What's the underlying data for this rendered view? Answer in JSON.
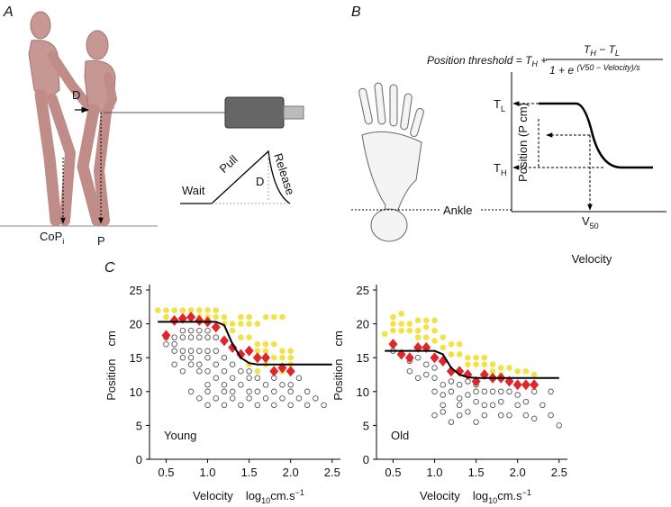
{
  "panel_a": {
    "label": "A",
    "pull_label": "D",
    "cop": "CoP",
    "cop_sub": "i",
    "p_label": "P",
    "wait": "Wait",
    "pull": "Pull",
    "d": "D",
    "release": "Release"
  },
  "panel_b": {
    "label": "B",
    "equation": {
      "lhs": "Position threshold = ",
      "t1": "T",
      "t1_sub": "H",
      "plus": " + ",
      "num_a": "T",
      "num_a_sub": "H",
      "minus": " − ",
      "num_b": "T",
      "num_b_sub": "L",
      "den": "1 + e ",
      "den_sup": "(V50 − Velocity)/s"
    },
    "ankle": "Ankle",
    "y_label": "Position (P cm)",
    "tl": "T",
    "tl_sub": "L",
    "th": "T",
    "th_sub": "H",
    "v50": "V",
    "v50_sub": "50",
    "x_label": "Velocity"
  },
  "panel_c": {
    "label": "C"
  },
  "chart_data": [
    {
      "type": "scatter",
      "annotation": "Young",
      "y_label": "Position",
      "y_unit": "cm",
      "x_label": "Velocity",
      "x_unit": {
        "base": "log",
        "sub": "10",
        "rest": "cm.s",
        "sup": "−1"
      },
      "xlim": [
        0.3,
        2.6
      ],
      "ylim": [
        0,
        25
      ],
      "xticks": [
        0.5,
        {
          "value": 1,
          "label": "1.0"
        },
        1.5,
        {
          "value": 2,
          "label": "2.0"
        },
        2.5
      ],
      "yticks": [
        0,
        5,
        10,
        15,
        20,
        25
      ],
      "grid": false,
      "series": [
        {
          "marker": "circle-filled",
          "color": "#f2e24a",
          "x": [
            0.4,
            0.5,
            0.5,
            0.6,
            0.7,
            0.8,
            0.9,
            1.0,
            0.8,
            0.9,
            1.0,
            1.1,
            1.1,
            1.2,
            1.2,
            1.3,
            1.3,
            1.4,
            1.4,
            1.5,
            1.5,
            1.6,
            1.7,
            1.8,
            1.9,
            1.4,
            1.5,
            1.6,
            1.7,
            1.8,
            1.5,
            1.6,
            1.7,
            1.9,
            2.0,
            1.8,
            1.9,
            2.0,
            1.5,
            1.7,
            2.0,
            1.9,
            1.6
          ],
          "values": [
            22,
            22,
            21,
            22,
            22,
            22,
            22,
            22,
            21,
            21,
            21,
            21,
            22,
            21,
            20,
            20,
            19,
            21,
            20,
            21,
            20,
            20,
            21,
            21,
            21,
            18,
            18,
            17,
            17,
            17,
            16,
            16,
            16,
            16,
            16,
            15,
            15,
            15,
            14,
            14,
            14,
            13,
            13
          ]
        },
        {
          "marker": "circle-open",
          "color": "#555555",
          "x": [
            0.5,
            0.6,
            0.5,
            0.6,
            0.7,
            0.8,
            0.9,
            1.0,
            0.7,
            0.8,
            0.9,
            1.0,
            1.1,
            0.6,
            0.7,
            0.8,
            0.9,
            1.0,
            1.1,
            0.7,
            0.8,
            1.0,
            1.2,
            0.6,
            0.8,
            0.9,
            1.1,
            1.3,
            0.7,
            0.9,
            1.0,
            1.2,
            1.4,
            1.5,
            1.1,
            1.3,
            1.5,
            1.6,
            1.8,
            2.1,
            1.0,
            1.2,
            1.4,
            1.7,
            1.9,
            2.0,
            0.8,
            1.0,
            1.2,
            1.3,
            1.5,
            1.6,
            1.8,
            2.0,
            2.2,
            0.9,
            1.1,
            1.3,
            1.5,
            1.7,
            1.9,
            2.1,
            2.3,
            1.0,
            1.2,
            1.4,
            1.6,
            1.8,
            2.0,
            2.2,
            2.4
          ],
          "values": [
            18,
            18,
            17,
            17,
            19,
            19,
            19,
            19,
            18,
            18,
            18,
            18,
            18,
            16,
            16,
            16,
            16,
            16,
            16,
            15,
            15,
            15,
            15,
            14,
            14,
            14,
            14,
            14,
            13,
            13,
            13,
            13,
            13,
            13,
            12,
            12,
            12,
            12,
            12,
            12,
            11,
            11,
            11,
            11,
            11,
            11,
            10,
            10,
            10,
            10,
            10,
            10,
            10,
            10,
            10,
            9,
            9,
            9,
            9,
            9,
            9,
            9,
            9,
            8,
            8,
            8,
            8,
            8,
            8,
            8,
            8
          ]
        },
        {
          "marker": "diamond",
          "color": "#e0262b",
          "x": [
            0.5,
            0.6,
            0.7,
            0.8,
            0.9,
            1.0,
            1.1,
            1.2,
            1.3,
            1.4,
            1.5,
            1.6,
            1.7,
            1.8,
            1.9,
            2.0
          ],
          "values": [
            18.3,
            20.5,
            20.8,
            21,
            20.5,
            20.3,
            19.5,
            17.5,
            16.5,
            15.5,
            16,
            15,
            15,
            13,
            13.5,
            13
          ]
        },
        {
          "marker": "line",
          "color": "#000000",
          "x": [
            0.4,
            1.1,
            1.2,
            1.3,
            1.4,
            1.5,
            1.6,
            2.5
          ],
          "values": [
            20.3,
            20.3,
            19.8,
            17,
            15,
            14.2,
            14,
            14
          ]
        }
      ]
    },
    {
      "type": "scatter",
      "annotation": "Old",
      "y_label": "Position",
      "y_unit": "cm",
      "x_label": "Velocity",
      "x_unit": {
        "base": "log",
        "sub": "10",
        "rest": "cm.s",
        "sup": "−1"
      },
      "xlim": [
        0.3,
        2.6
      ],
      "ylim": [
        0,
        25
      ],
      "xticks": [
        0.5,
        {
          "value": 1,
          "label": "1.0"
        },
        1.5,
        {
          "value": 2,
          "label": "2.0"
        },
        2.5
      ],
      "yticks": [
        0,
        5,
        10,
        15,
        20,
        25
      ],
      "grid": false,
      "series": [
        {
          "marker": "circle-filled",
          "color": "#f2e24a",
          "x": [
            0.4,
            0.5,
            0.5,
            0.5,
            0.6,
            0.6,
            0.6,
            0.7,
            0.7,
            0.8,
            0.8,
            0.9,
            0.9,
            1.0,
            1.0,
            0.8,
            0.9,
            1.0,
            1.1,
            1.1,
            1.2,
            1.3,
            1.2,
            1.3,
            1.4,
            1.5,
            1.6,
            1.4,
            1.5,
            1.6,
            1.7,
            1.8,
            1.9,
            2.0,
            2.1,
            2.2,
            1.7,
            1.8,
            1.3
          ],
          "values": [
            18.5,
            21,
            20,
            19,
            21.5,
            20,
            19,
            20,
            19,
            20.5,
            19,
            20.5,
            19.5,
            20.5,
            19,
            18,
            18,
            17.5,
            18,
            16.5,
            17,
            17,
            15.5,
            15.5,
            15,
            15,
            15,
            14,
            14,
            14,
            14,
            13.5,
            13.5,
            13,
            13,
            12.5,
            13,
            12.5,
            13
          ]
        },
        {
          "marker": "circle-open",
          "color": "#555555",
          "x": [
            0.5,
            0.6,
            0.7,
            0.8,
            0.7,
            0.8,
            0.9,
            0.9,
            1.0,
            1.0,
            1.1,
            1.2,
            1.3,
            1.4,
            1.5,
            1.0,
            1.1,
            1.2,
            1.3,
            1.4,
            1.5,
            1.6,
            1.7,
            1.8,
            1.9,
            2.0,
            2.2,
            2.4,
            1.1,
            1.3,
            1.5,
            1.6,
            1.7,
            1.8,
            2.0,
            2.1,
            2.3,
            1.0,
            1.1,
            1.3,
            1.4,
            1.6,
            1.8,
            1.9,
            2.1,
            2.2,
            2.4,
            1.2,
            1.5,
            2.5
          ],
          "values": [
            16,
            15.5,
            14.5,
            15,
            13,
            12,
            14,
            12.5,
            13.5,
            12,
            11,
            11.5,
            11,
            11.5,
            11,
            10,
            9.5,
            10,
            9,
            9.5,
            10,
            10,
            10,
            10,
            10,
            9.5,
            10,
            10,
            8,
            8,
            8.5,
            8,
            8,
            8.5,
            8,
            8.5,
            8,
            6.5,
            7,
            6.5,
            7,
            6.5,
            6.5,
            6.5,
            6.5,
            6,
            6.5,
            5.5,
            5.5,
            5
          ]
        },
        {
          "marker": "diamond",
          "color": "#e0262b",
          "x": [
            0.5,
            0.6,
            0.7,
            0.8,
            0.9,
            1.0,
            1.1,
            1.2,
            1.3,
            1.4,
            1.5,
            1.6,
            1.7,
            1.8,
            1.9,
            2.0,
            2.1,
            2.2
          ],
          "values": [
            17,
            15.5,
            15,
            16.5,
            16.5,
            15,
            14.5,
            13,
            13,
            12.5,
            11.5,
            12.5,
            12,
            12,
            11.5,
            11,
            11,
            11
          ]
        },
        {
          "marker": "line",
          "color": "#000000",
          "x": [
            0.4,
            1.0,
            1.1,
            1.2,
            1.3,
            1.4,
            1.5,
            2.5
          ],
          "values": [
            16,
            16,
            15.5,
            13.5,
            12.5,
            12.1,
            12,
            12
          ]
        }
      ]
    }
  ]
}
